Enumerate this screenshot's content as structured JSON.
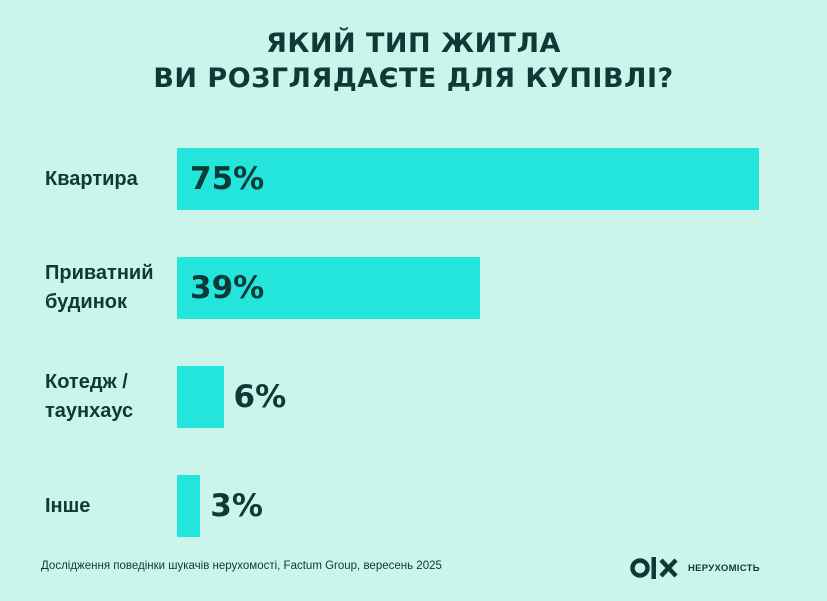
{
  "title_lines": [
    "ЯКИЙ ТИП ЖИТЛА",
    "ВИ РОЗГЛЯДАЄТЕ ДЛЯ КУПІВЛІ?"
  ],
  "chart_data": {
    "type": "bar",
    "orientation": "horizontal",
    "title": "ЯКИЙ ТИП ЖИТЛА ВИ РОЗГЛЯДАЄТЕ ДЛЯ КУПІВЛІ?",
    "categories": [
      "Квартира",
      "Приватний будинок",
      "Котедж / таунхаус",
      "Інше"
    ],
    "category_lines": [
      [
        "Квартира"
      ],
      [
        "Приватний",
        "будинок"
      ],
      [
        "Котедж /",
        "таунхаус"
      ],
      [
        "Інше"
      ]
    ],
    "values": [
      75,
      39,
      6,
      3
    ],
    "value_labels": [
      "75%",
      "39%",
      "6%",
      "3%"
    ],
    "unit": "%",
    "xlim": [
      0,
      75
    ],
    "bar_color": "#23e5db",
    "grid": false,
    "legend": "none"
  },
  "footer": {
    "source": "Дослідження поведінки шукачів нерухомості, Factum Group, вересень 2025"
  },
  "brand": {
    "logo_icon": "olx-logo-icon",
    "name": "НЕРУХОМІСТЬ"
  },
  "colors": {
    "background": "#cbf5ea",
    "text": "#0b3a37",
    "bar": "#23e5db"
  }
}
